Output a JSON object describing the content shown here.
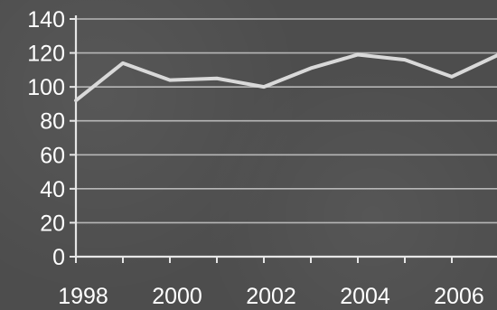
{
  "chart_data": {
    "type": "line",
    "title": "",
    "xlabel": "",
    "ylabel": "",
    "x": [
      1998,
      1999,
      2000,
      2001,
      2002,
      2003,
      2004,
      2005,
      2006,
      2007
    ],
    "x_ticks": [
      "1998",
      "2000",
      "2002",
      "2004",
      "2006"
    ],
    "y_ticks": [
      "0",
      "20",
      "40",
      "60",
      "80",
      "100",
      "120",
      "140"
    ],
    "xlim": [
      1998,
      2007
    ],
    "ylim": [
      0,
      140
    ],
    "grid": true,
    "legend": "none",
    "series": [
      {
        "values": [
          92,
          114,
          104,
          105,
          100,
          111,
          119,
          116,
          106,
          119
        ],
        "color": "#d9d9d9"
      }
    ],
    "colors": {
      "background": "#4d4d4d",
      "axis": "#e6e6e6",
      "grid": "#c8c8c8",
      "text": "#ffffff"
    }
  }
}
